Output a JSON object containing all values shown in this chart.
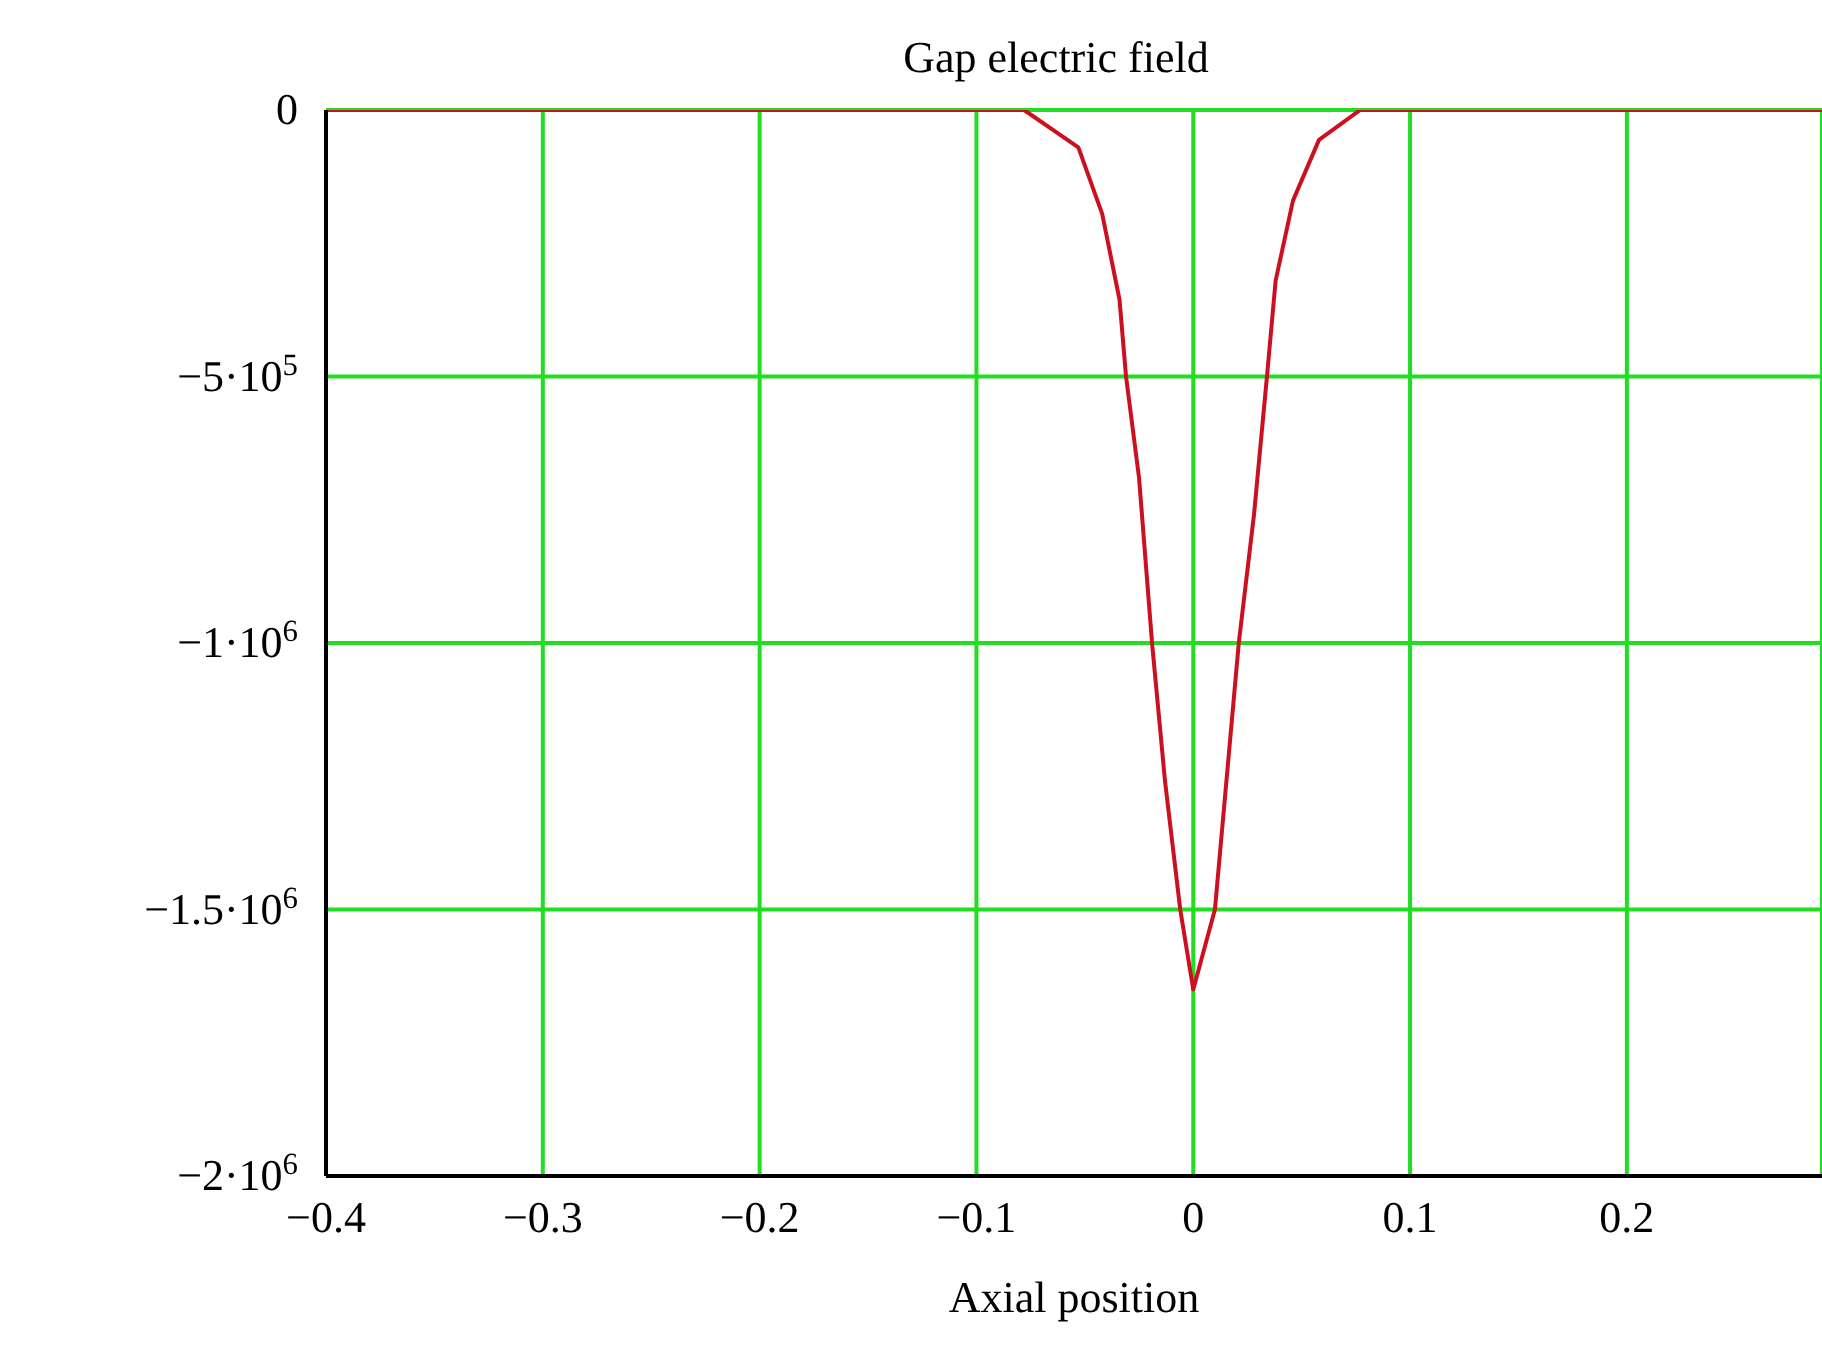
{
  "chart_data": {
    "type": "line",
    "title": "Gap electric field",
    "xlabel": "Axial position",
    "x": [
      -0.4,
      -0.1,
      -0.078,
      -0.053,
      -0.042,
      -0.034,
      -0.031,
      -0.025,
      -0.019,
      -0.013,
      -0.006,
      0,
      0.01,
      0.021,
      0.028,
      0.034,
      0.038,
      0.046,
      0.058,
      0.077,
      0.1,
      0.29
    ],
    "series": [
      {
        "color": "#cc1020",
        "values": [
          0,
          0,
          0,
          -70000,
          -195000,
          -356000,
          -500000,
          -690000,
          -1000000,
          -1260000,
          -1500000,
          -1650000,
          -1500000,
          -1000000,
          -760000,
          -500000,
          -320000,
          -170000,
          -56000,
          0,
          0,
          0
        ]
      }
    ],
    "xlim": [
      -0.4,
      0.29
    ],
    "xticks": [
      {
        "value": -0.4,
        "label": "−0.4"
      },
      {
        "value": -0.3,
        "label": "−0.3"
      },
      {
        "value": -0.2,
        "label": "−0.2"
      },
      {
        "value": -0.1,
        "label": "−0.1"
      },
      0,
      0.1,
      0.2
    ],
    "ylim": [
      -2000000,
      0
    ],
    "yticks": [
      {
        "value": -2000000,
        "label": "−2·10$^{6}$"
      },
      {
        "value": -1500000,
        "label": "−1.5·10$^{6}$"
      },
      {
        "value": -1000000,
        "label": "−1·10$^{6}$"
      },
      {
        "value": -500000,
        "label": "−5·10$^{5}$"
      },
      0
    ],
    "grid": true,
    "line_style": "solid",
    "marker": "none"
  }
}
